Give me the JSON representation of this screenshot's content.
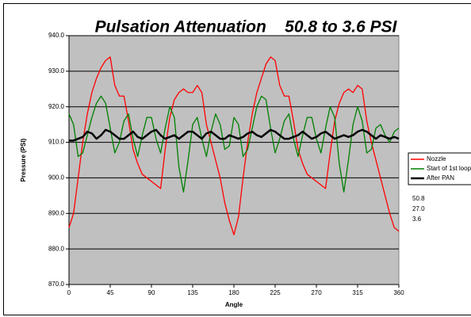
{
  "chart_data": {
    "type": "line",
    "title": "Pulsation Attenuation    50.8 to 3.6 PSI",
    "xlabel": "Angle",
    "ylabel": "Pressure (PSI)",
    "x": [
      0,
      5,
      10,
      15,
      20,
      25,
      30,
      35,
      40,
      45,
      50,
      55,
      60,
      65,
      70,
      75,
      80,
      85,
      90,
      95,
      100,
      105,
      110,
      115,
      120,
      125,
      130,
      135,
      140,
      145,
      150,
      155,
      160,
      165,
      170,
      175,
      180,
      185,
      190,
      195,
      200,
      205,
      210,
      215,
      220,
      225,
      230,
      235,
      240,
      245,
      250,
      255,
      260,
      265,
      270,
      275,
      280,
      285,
      290,
      295,
      300,
      305,
      310,
      315,
      320,
      325,
      330,
      335,
      340,
      345,
      350,
      355,
      360
    ],
    "series": [
      {
        "name": "Nozzle",
        "color": "#ff0000",
        "values": [
          886,
          890,
          900,
          910,
          918,
          924,
          928,
          931,
          933,
          934,
          926,
          923,
          923,
          916,
          908,
          904,
          901,
          900,
          899,
          898,
          897,
          908,
          917,
          922,
          924,
          925,
          924,
          924,
          926,
          924,
          915,
          910,
          905,
          900,
          893,
          888,
          884,
          889,
          900,
          910,
          918,
          924,
          928,
          932,
          934,
          933,
          926,
          923,
          923,
          916,
          908,
          904,
          901,
          900,
          899,
          898,
          897,
          907,
          916,
          921,
          924,
          925,
          924,
          926,
          925,
          916,
          910,
          905,
          900,
          895,
          890,
          886,
          885
        ]
      },
      {
        "name": "Start of 1st loop",
        "color": "#008000",
        "values": [
          918,
          915,
          906,
          907,
          912,
          917,
          921,
          923,
          921,
          914,
          907,
          910,
          916,
          918,
          911,
          906,
          912,
          917,
          917,
          911,
          907,
          914,
          920,
          917,
          903,
          896,
          905,
          915,
          917,
          911,
          906,
          913,
          918,
          915,
          908,
          909,
          917,
          915,
          906,
          908,
          914,
          920,
          923,
          922,
          914,
          907,
          911,
          916,
          918,
          911,
          906,
          912,
          917,
          917,
          911,
          907,
          914,
          920,
          917,
          904,
          896,
          905,
          915,
          920,
          916,
          907,
          908,
          914,
          915,
          912,
          910,
          913,
          914
        ]
      },
      {
        "name": "After PAN",
        "color": "#000000",
        "values": [
          910.5,
          910.5,
          911,
          911.5,
          913,
          912.5,
          911,
          912,
          913.5,
          913,
          912,
          911,
          911,
          912,
          913,
          911.5,
          911,
          912,
          913,
          913.5,
          912,
          911,
          911.5,
          912,
          911,
          912,
          913,
          913,
          912,
          911,
          912.5,
          913,
          912,
          911,
          911,
          912,
          911.5,
          911,
          911.5,
          912.5,
          913,
          912,
          911.5,
          912.5,
          913.5,
          913,
          912,
          911,
          911,
          911.5,
          912,
          913,
          912,
          911,
          911.5,
          912.5,
          913,
          912,
          911,
          911.5,
          912,
          911.5,
          912,
          913,
          913.5,
          913,
          912,
          911,
          912,
          911.5,
          911,
          911.5,
          911
        ]
      }
    ],
    "xlim": [
      0,
      360
    ],
    "xticks": [
      0,
      45,
      90,
      135,
      180,
      225,
      270,
      315,
      360
    ],
    "ylim": [
      870,
      940
    ],
    "yticks": [
      {
        "value": 870,
        "label": "870.0"
      },
      {
        "value": 880,
        "label": "880.0"
      },
      {
        "value": 890,
        "label": "890.0"
      },
      {
        "value": 900,
        "label": "900.0"
      },
      {
        "value": 910,
        "label": "910.0"
      },
      {
        "value": 920,
        "label": "920.0"
      },
      {
        "value": 930,
        "label": "930.0"
      },
      {
        "value": 940,
        "label": "940.0"
      }
    ],
    "grid": true,
    "legend": "right",
    "annotations": [
      "50.8",
      "27.0",
      "3.6"
    ]
  }
}
